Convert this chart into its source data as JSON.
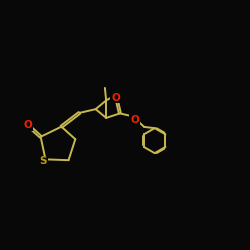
{
  "bg_color": "#080808",
  "bond_color": "#c8b850",
  "atom_colors": {
    "O": "#ee2200",
    "S": "#b8a010",
    "C": "#c8b850"
  },
  "line_width": 1.4,
  "figsize": [
    2.5,
    2.5
  ],
  "dpi": 100,
  "xlim": [
    0.0,
    10.0
  ],
  "ylim": [
    0.0,
    10.0
  ]
}
